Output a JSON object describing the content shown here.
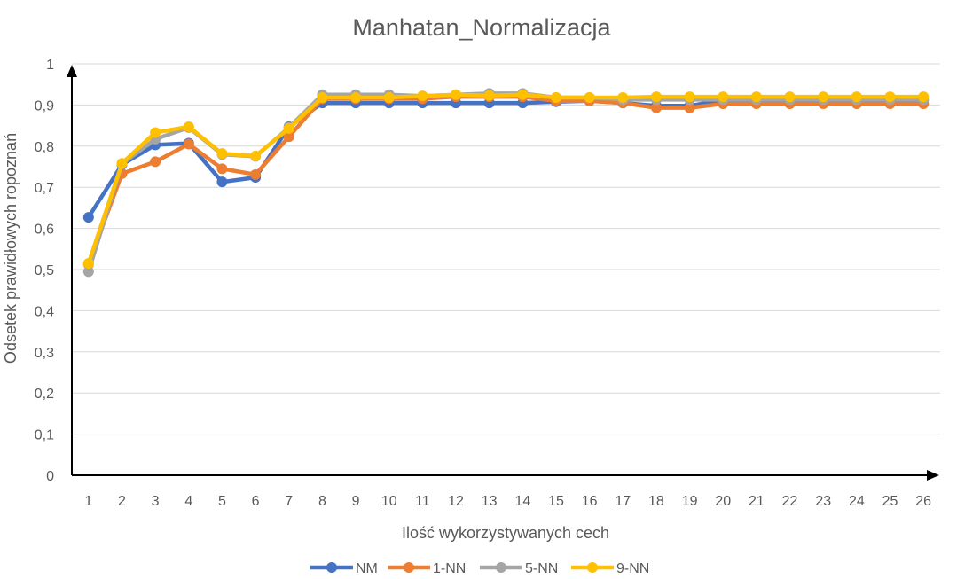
{
  "chart_data": {
    "type": "line",
    "title": "Manhatan_Normalizacja",
    "xlabel": "Ilość wykorzystywanych cech",
    "ylabel": "Odsetek prawidłowych ropoznań",
    "categories": [
      "1",
      "2",
      "3",
      "4",
      "5",
      "6",
      "7",
      "8",
      "9",
      "10",
      "11",
      "12",
      "13",
      "14",
      "15",
      "16",
      "17",
      "18",
      "19",
      "20",
      "21",
      "22",
      "23",
      "24",
      "25",
      "26"
    ],
    "yticks": [
      "0",
      "0,1",
      "0,2",
      "0,3",
      "0,4",
      "0,5",
      "0,6",
      "0,7",
      "0,8",
      "0,9",
      "1"
    ],
    "ylim": [
      0,
      1
    ],
    "grid": true,
    "legend_position": "bottom",
    "series": [
      {
        "name": "NM",
        "color": "#4472C4",
        "values": [
          0.627,
          0.755,
          0.803,
          0.807,
          0.713,
          0.724,
          0.847,
          0.905,
          0.905,
          0.905,
          0.905,
          0.905,
          0.905,
          0.905,
          0.908,
          0.91,
          0.905,
          0.898,
          0.898,
          0.912,
          0.912,
          0.912,
          0.912,
          0.912,
          0.912,
          0.912
        ]
      },
      {
        "name": "1-NN",
        "color": "#ED7D31",
        "values": [
          0.513,
          0.733,
          0.762,
          0.805,
          0.745,
          0.731,
          0.823,
          0.915,
          0.915,
          0.915,
          0.915,
          0.92,
          0.92,
          0.92,
          0.91,
          0.91,
          0.905,
          0.893,
          0.893,
          0.903,
          0.903,
          0.903,
          0.903,
          0.903,
          0.903,
          0.903
        ]
      },
      {
        "name": "5-NN",
        "color": "#A5A5A5",
        "values": [
          0.495,
          0.757,
          0.817,
          0.845,
          0.78,
          0.775,
          0.845,
          0.925,
          0.925,
          0.925,
          0.922,
          0.925,
          0.928,
          0.928,
          0.918,
          0.918,
          0.913,
          0.913,
          0.913,
          0.913,
          0.913,
          0.913,
          0.913,
          0.913,
          0.913,
          0.913
        ]
      },
      {
        "name": "9-NN",
        "color": "#FFC000",
        "values": [
          0.515,
          0.758,
          0.833,
          0.847,
          0.782,
          0.776,
          0.843,
          0.918,
          0.918,
          0.918,
          0.922,
          0.925,
          0.923,
          0.925,
          0.918,
          0.918,
          0.918,
          0.92,
          0.92,
          0.92,
          0.92,
          0.92,
          0.92,
          0.92,
          0.92,
          0.92
        ]
      }
    ]
  }
}
